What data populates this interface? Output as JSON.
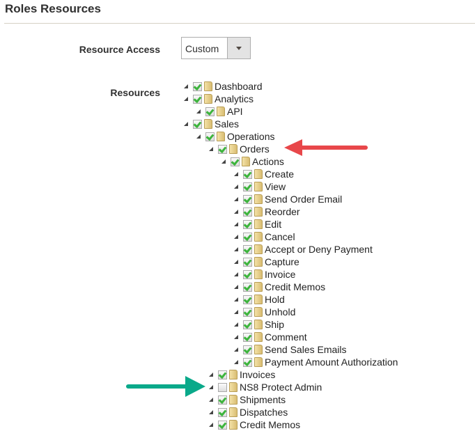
{
  "title": "Roles Resources",
  "resource_access": {
    "label": "Resource Access",
    "value": "Custom"
  },
  "resources_label": "Resources",
  "tree": [
    {
      "label": "Dashboard",
      "level": 0,
      "checked": true
    },
    {
      "label": "Analytics",
      "level": 0,
      "checked": true
    },
    {
      "label": "API",
      "level": 1,
      "checked": true
    },
    {
      "label": "Sales",
      "level": 0,
      "checked": true
    },
    {
      "label": "Operations",
      "level": 1,
      "checked": true
    },
    {
      "label": "Orders",
      "level": 2,
      "checked": true
    },
    {
      "label": "Actions",
      "level": 3,
      "checked": true
    },
    {
      "label": "Create",
      "level": 4,
      "checked": true
    },
    {
      "label": "View",
      "level": 4,
      "checked": true
    },
    {
      "label": "Send Order Email",
      "level": 4,
      "checked": true
    },
    {
      "label": "Reorder",
      "level": 4,
      "checked": true
    },
    {
      "label": "Edit",
      "level": 4,
      "checked": true
    },
    {
      "label": "Cancel",
      "level": 4,
      "checked": true
    },
    {
      "label": "Accept or Deny Payment",
      "level": 4,
      "checked": true
    },
    {
      "label": "Capture",
      "level": 4,
      "checked": true
    },
    {
      "label": "Invoice",
      "level": 4,
      "checked": true
    },
    {
      "label": "Credit Memos",
      "level": 4,
      "checked": true
    },
    {
      "label": "Hold",
      "level": 4,
      "checked": true
    },
    {
      "label": "Unhold",
      "level": 4,
      "checked": true
    },
    {
      "label": "Ship",
      "level": 4,
      "checked": true
    },
    {
      "label": "Comment",
      "level": 4,
      "checked": true
    },
    {
      "label": "Send Sales Emails",
      "level": 4,
      "checked": true
    },
    {
      "label": "Payment Amount Authorization",
      "level": 4,
      "checked": true
    },
    {
      "label": "Invoices",
      "level": 2,
      "checked": true
    },
    {
      "label": "NS8 Protect Admin",
      "level": 2,
      "checked": false
    },
    {
      "label": "Shipments",
      "level": 2,
      "checked": true
    },
    {
      "label": "Dispatches",
      "level": 2,
      "checked": true
    },
    {
      "label": "Credit Memos",
      "level": 2,
      "checked": true
    }
  ],
  "annotations": {
    "red_arrow_color": "#e8474a",
    "green_arrow_color": "#0aa98a"
  }
}
